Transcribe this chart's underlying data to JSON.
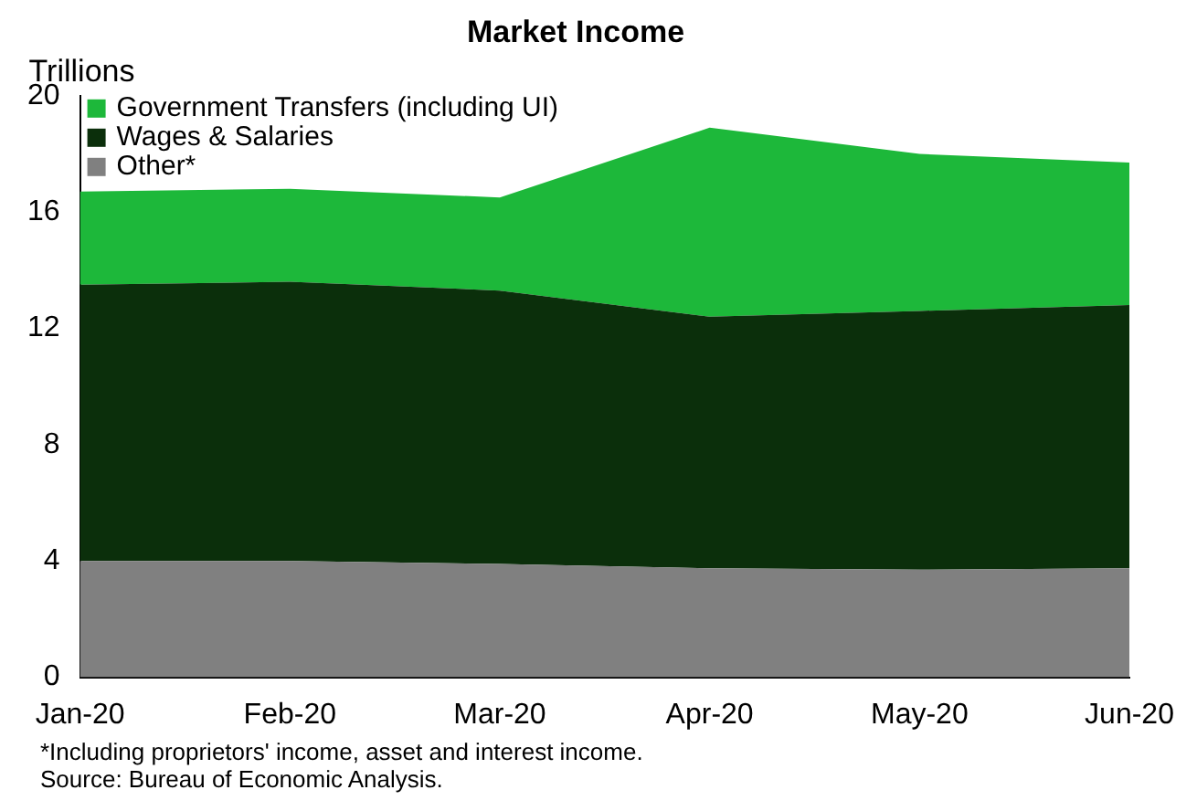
{
  "chart_data": {
    "type": "area",
    "title": "Market Income",
    "ylabel": "Trillions",
    "categories": [
      "Jan-20",
      "Feb-20",
      "Mar-20",
      "Apr-20",
      "May-20",
      "Jun-20"
    ],
    "stacked": true,
    "series": [
      {
        "name": "Other*",
        "color": "#808080",
        "values": [
          4.0,
          4.0,
          3.9,
          3.75,
          3.7,
          3.75
        ]
      },
      {
        "name": "Wages & Salaries",
        "color": "#0b2f0b",
        "values": [
          9.5,
          9.6,
          9.4,
          8.65,
          8.9,
          9.05
        ]
      },
      {
        "name": "Government Transfers (including UI)",
        "color": "#1db83a",
        "values": [
          3.2,
          3.2,
          3.2,
          6.5,
          5.4,
          4.9
        ]
      }
    ],
    "ylim": [
      0,
      20
    ],
    "yticks": [
      0,
      4,
      8,
      12,
      16,
      20
    ],
    "grid": false,
    "legend": "top left",
    "annotations": [
      "*Including proprietors' income, asset and interest income.",
      "Source: Bureau of Economic Analysis."
    ]
  }
}
